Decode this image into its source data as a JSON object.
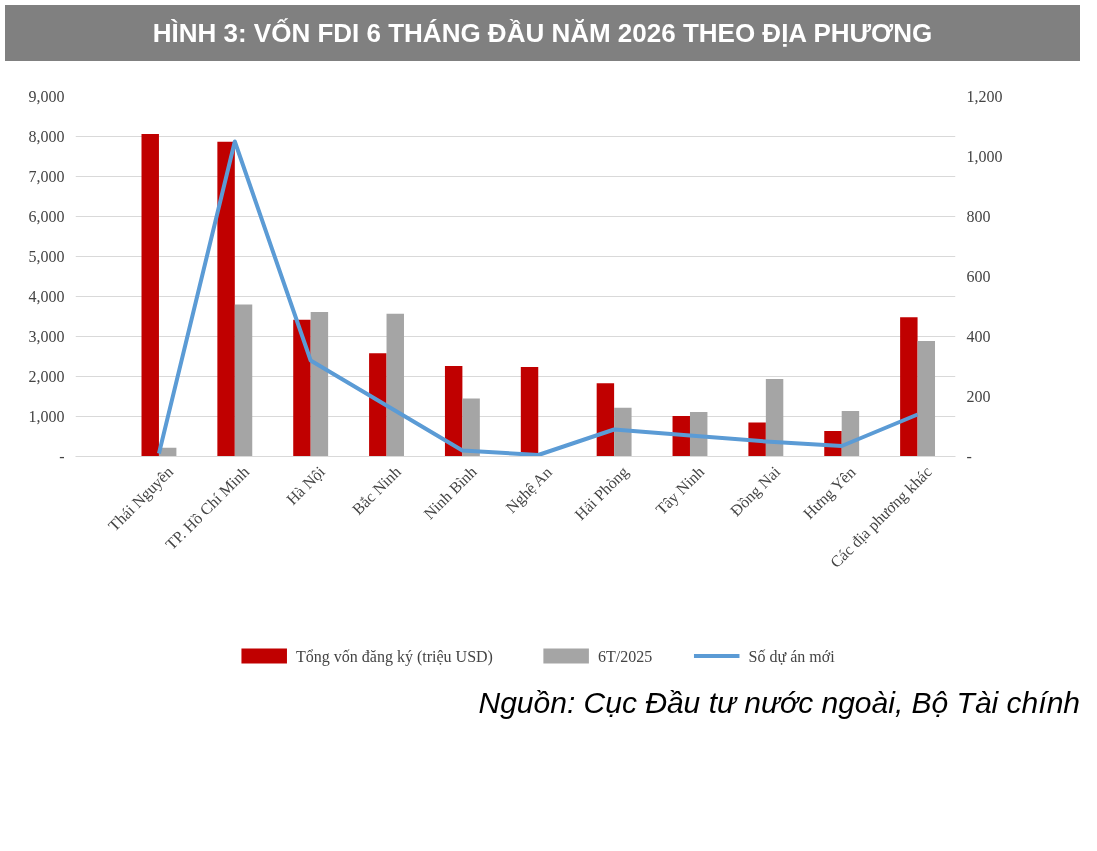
{
  "chart_data": {
    "type": "bar",
    "title": "HÌNH 3: VỐN FDI 6 THÁNG ĐẦU NĂM 2026 THEO ĐỊA PHƯƠNG",
    "categories": [
      "Thái Nguyên",
      "TP. Hồ Chí Minh",
      "Hà Nội",
      "Bắc Ninh",
      "Ninh Bình",
      "Nghệ An",
      "Hải Phòng",
      "Tây Ninh",
      "Đồng Nai",
      "Hưng Yên",
      "Các địa phương khác"
    ],
    "series": [
      {
        "name": "Tổng vốn đăng ký (triệu USD)",
        "color": "#c00000",
        "values": [
          8060,
          7870,
          3420,
          2580,
          2260,
          2240,
          1830,
          1010,
          850,
          640,
          3480
        ]
      },
      {
        "name": "6T/2025",
        "color": "#a5a5a5",
        "values": [
          220,
          3800,
          3610,
          3570,
          1450,
          null,
          1220,
          1110,
          1940,
          1140,
          2890
        ]
      },
      {
        "name": "Số dự án mới",
        "type": "line",
        "axis": "y2",
        "color": "#5b9bd5",
        "values": [
          10,
          1050,
          320,
          170,
          20,
          5,
          90,
          70,
          50,
          35,
          140
        ]
      }
    ],
    "ylim": [
      0,
      9000
    ],
    "yticks": [
      {
        "value": 0,
        "label": "-"
      },
      {
        "value": 1000,
        "label": "1,000"
      },
      {
        "value": 2000,
        "label": "2,000"
      },
      {
        "value": 3000,
        "label": "3,000"
      },
      {
        "value": 4000,
        "label": "4,000"
      },
      {
        "value": 5000,
        "label": "5,000"
      },
      {
        "value": 6000,
        "label": "6,000"
      },
      {
        "value": 7000,
        "label": "7,000"
      },
      {
        "value": 8000,
        "label": "8,000"
      },
      {
        "value": 9000,
        "label": "9,000"
      }
    ],
    "y2lim": [
      0,
      1200
    ],
    "y2ticks": [
      {
        "value": 0,
        "label": "-"
      },
      {
        "value": 200,
        "label": "200"
      },
      {
        "value": 400,
        "label": "400"
      },
      {
        "value": 600,
        "label": "600"
      },
      {
        "value": 800,
        "label": "800"
      },
      {
        "value": 1000,
        "label": "1,000"
      },
      {
        "value": 1200,
        "label": "1,200"
      }
    ],
    "grid": "y",
    "legend": "bottom",
    "annotations": [
      "Nguồn: Cục Đầu tư nước ngoài, Bộ Tài chính"
    ]
  }
}
